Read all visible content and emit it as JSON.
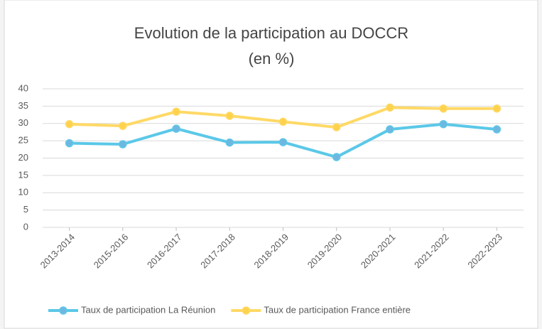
{
  "chart_data": {
    "type": "line",
    "title": "Evolution de la participation au DOCCR",
    "subtitle": "(en %)",
    "categories": [
      "2013-2014",
      "2015-2016",
      "2016-2017",
      "2017-2018",
      "2018-2019",
      "2019-2020",
      "2020-2021",
      "2021-2022",
      "2022-2023"
    ],
    "series": [
      {
        "name": "Taux de participation La Réunion",
        "color": "#5bc8e8",
        "marker_color": "#6fb7e0",
        "values": [
          24.3,
          24.0,
          28.5,
          24.5,
          24.6,
          20.3,
          28.3,
          29.8,
          28.3
        ]
      },
      {
        "name": "Taux de participation France entière",
        "color": "#ffd966",
        "marker_color": "#ffd24d",
        "values": [
          29.8,
          29.3,
          33.4,
          32.2,
          30.5,
          28.9,
          34.6,
          34.3,
          34.3
        ]
      }
    ],
    "ylim": [
      0,
      40
    ],
    "yticks": [
      0,
      5,
      10,
      15,
      20,
      25,
      30,
      35,
      40
    ],
    "grid": true,
    "legend": "bottom"
  }
}
